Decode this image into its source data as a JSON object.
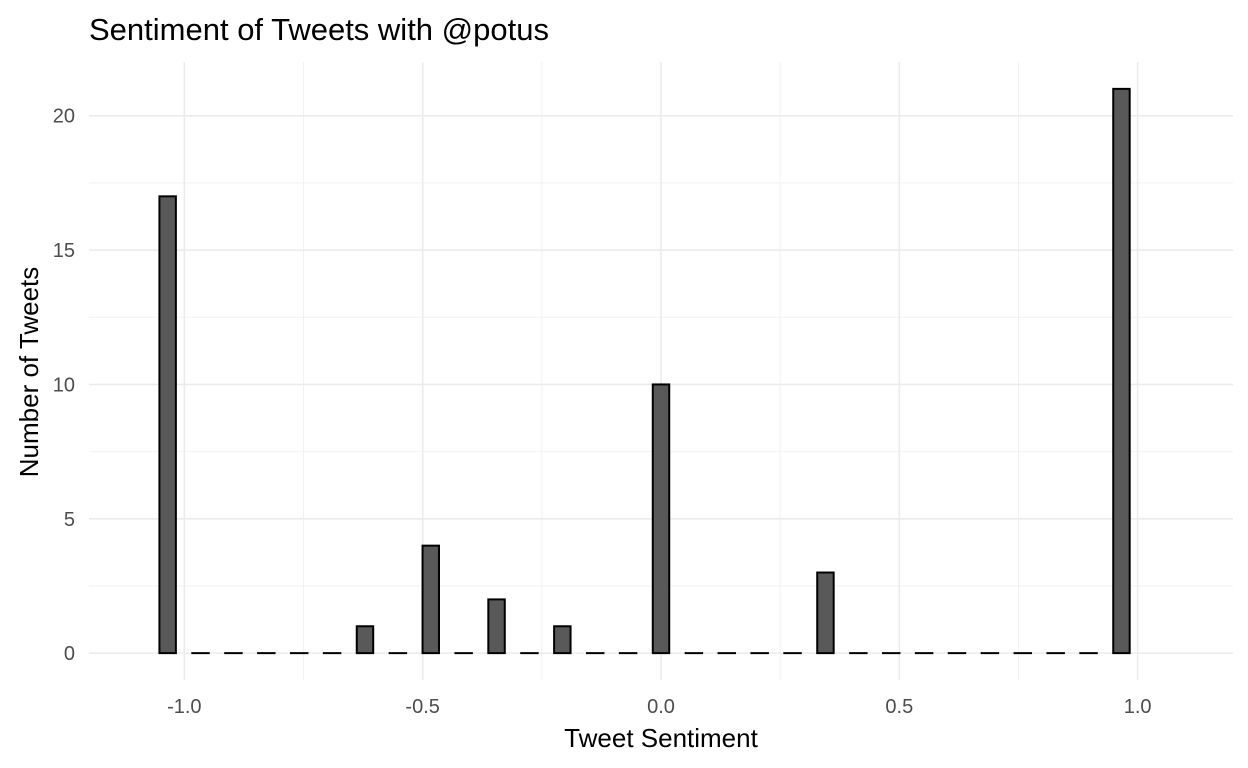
{
  "chart_data": {
    "type": "bar",
    "title": "Sentiment of Tweets with @potus",
    "xlabel": "Tweet Sentiment",
    "ylabel": "Number of Tweets",
    "xlim": [
      -1.2,
      1.2
    ],
    "ylim": [
      -1,
      22
    ],
    "x_ticks": [
      -1.0,
      -0.5,
      0.0,
      0.5,
      1.0
    ],
    "x_tick_labels": [
      "-1.0",
      "-0.5",
      "0.0",
      "0.5",
      "1.0"
    ],
    "y_ticks": [
      0,
      5,
      10,
      15,
      20
    ],
    "y_tick_labels": [
      "0",
      "5",
      "10",
      "15",
      "20"
    ],
    "bin_width": 0.069,
    "x": [
      -1.035,
      -0.966,
      -0.897,
      -0.828,
      -0.759,
      -0.69,
      -0.621,
      -0.552,
      -0.483,
      -0.414,
      -0.345,
      -0.276,
      -0.207,
      -0.138,
      -0.069,
      0.0,
      0.069,
      0.138,
      0.207,
      0.276,
      0.345,
      0.414,
      0.483,
      0.552,
      0.621,
      0.69,
      0.759,
      0.828,
      0.897,
      0.966
    ],
    "values": [
      17,
      0,
      0,
      0,
      0,
      0,
      1,
      0,
      4,
      0,
      2,
      0,
      1,
      0,
      0,
      10,
      0,
      0,
      0,
      0,
      3,
      0,
      0,
      0,
      0,
      0,
      0,
      0,
      0,
      21
    ],
    "bar_fill": "#595959",
    "bar_outline": "#000000",
    "grid": true,
    "legend": "none"
  }
}
